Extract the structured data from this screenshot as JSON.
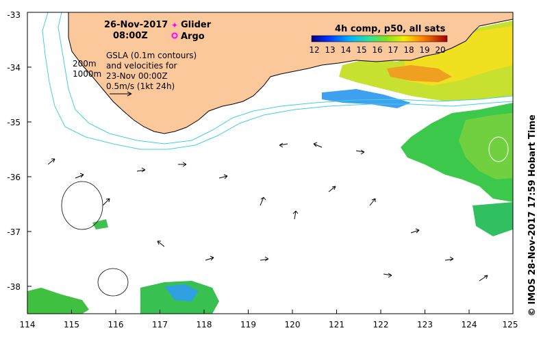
{
  "map": {
    "date_line1": "26-Nov-2017",
    "date_line2": "08:00Z",
    "legend_glider": "Glider",
    "legend_argo": "Argo",
    "legend_glider_color": "#ff00ff",
    "legend_argo_color": "#ff00ff",
    "depth_200": "200m",
    "depth_1000": "1000m",
    "gsla_line1": "GSLA (0.1m contours)",
    "gsla_line2": "and velocities for",
    "gsla_line3": "23-Nov 00:00Z",
    "gsla_line4": "0.5m/s (1kt 24h)",
    "colorbar_title": "4h comp, p50, all sats",
    "colorbar_ticks": [
      "12",
      "13",
      "14",
      "15",
      "16",
      "17",
      "18",
      "19",
      "20"
    ],
    "credit": "© IMOS 28-Nov-2017 17:59 Hobart Time",
    "lon_ticks": [
      "114",
      "115",
      "116",
      "117",
      "118",
      "119",
      "120",
      "121",
      "122",
      "123",
      "124",
      "125"
    ],
    "lat_ticks": [
      "-33",
      "-34",
      "-35",
      "-36",
      "-37",
      "-38"
    ],
    "colors": {
      "land": "#fac89b",
      "contour": "#40d0e0",
      "frame": "#000000"
    }
  }
}
